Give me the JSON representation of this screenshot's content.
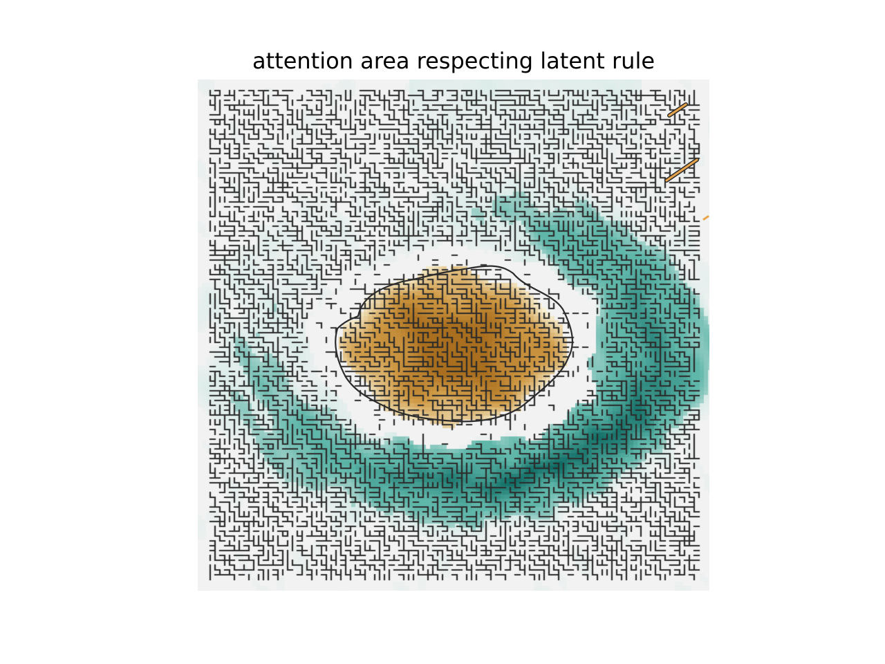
{
  "title": "attention area respecting latent rule",
  "colors": {
    "background": "#f2f2f2",
    "teal_light": "#c7e8e2",
    "teal_mid": "#5fb7aa",
    "teal_dark": "#0e6b63",
    "brown_light": "#eedcb2",
    "brown_mid": "#d09a45",
    "brown_dark": "#a06415",
    "maze_line": "#2b2b2b",
    "orange_mark": "#e8a44a"
  }
}
